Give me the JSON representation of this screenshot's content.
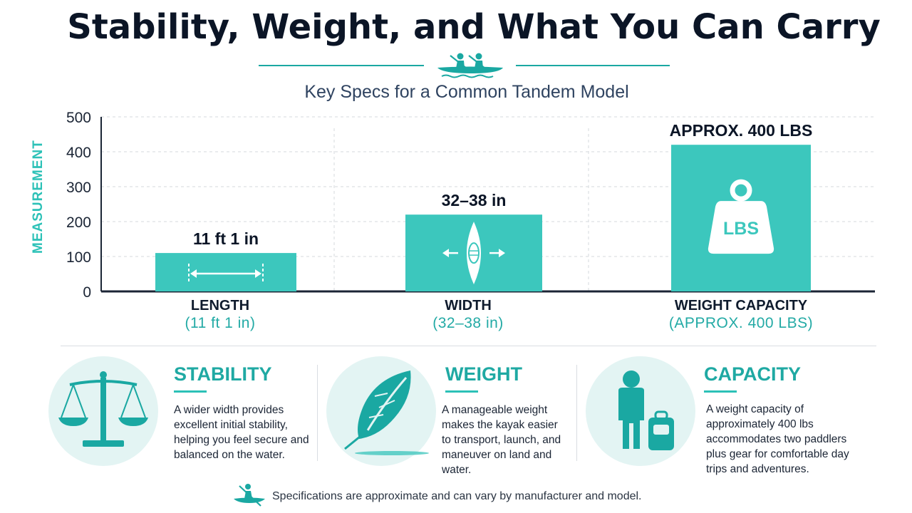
{
  "title": "Stability, Weight, and What You Can Carry",
  "subtitle": "Key Specs for a Common Tandem Model",
  "icons": {
    "header": "tandem-kayak-icon",
    "footer": "kayaker-icon",
    "length_bar": "double-arrow-icon",
    "width_bar": "kayak-width-icon",
    "capacity_bar": "weight-lbs-icon",
    "stability": "balance-scale-icon",
    "weight": "feather-icon",
    "capacity": "person-with-bag-icon"
  },
  "colors": {
    "accent": "#3cc7bd",
    "accent_dark": "#1aa8a2",
    "text_dark": "#0b1526",
    "circle_bg": "#e3f4f3",
    "weight_text": "LBS"
  },
  "chart_data": {
    "type": "bar",
    "ylabel": "MEASUREMENT",
    "ylim": [
      0,
      500
    ],
    "yticks": [
      0,
      100,
      200,
      300,
      400,
      500
    ],
    "grid": true,
    "categories": [
      "LENGTH",
      "WIDTH",
      "WEIGHT CAPACITY"
    ],
    "category_sublabels": [
      "(11 ft 1 in)",
      "(32–38 in)",
      "(APPROX. 400 LBS)"
    ],
    "values": [
      110,
      220,
      420
    ],
    "data_labels": [
      "11 ft 1 in",
      "32–38 in",
      "APPROX. 400 LBS"
    ]
  },
  "cards": [
    {
      "title": "STABILITY",
      "text": "A wider width provides excellent initial stability, helping you feel secure and balanced on the water."
    },
    {
      "title": "WEIGHT",
      "text": "A manageable weight makes the kayak easier to transport, launch, and maneuver on land and water."
    },
    {
      "title": "CAPACITY",
      "text": "A weight capacity of approximately 400 lbs accommodates two paddlers plus gear for comfortable day trips and adventures."
    }
  ],
  "footnote": "Specifications are approximate and can vary by manufacturer and model."
}
